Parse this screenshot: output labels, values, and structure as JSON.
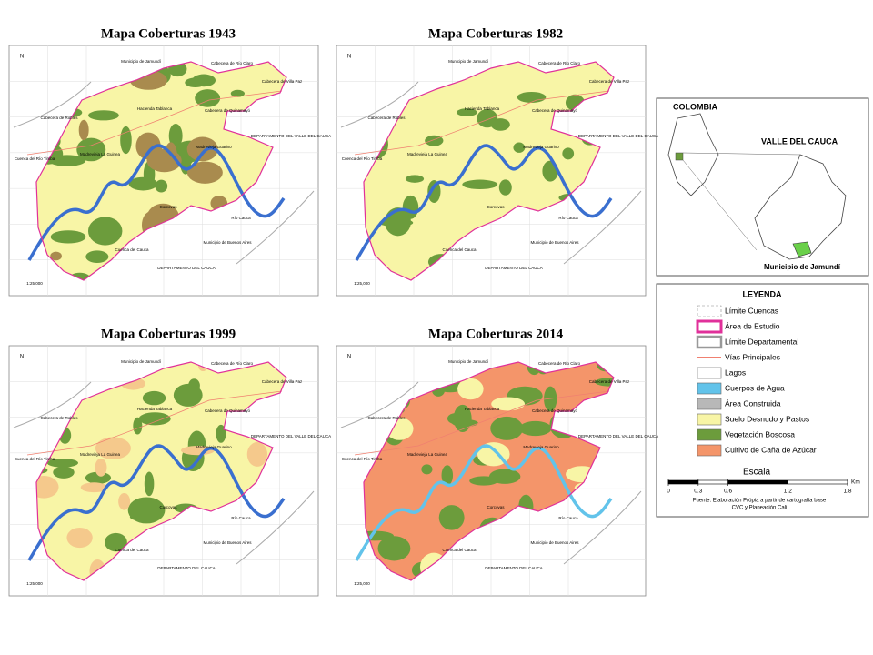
{
  "maps": [
    {
      "title": "Mapa Coberturas 1943",
      "labels": [
        "Municipio de Jamundí",
        "Cabecera de Río Claro",
        "Cabecera de Villa Paz",
        "Cabecera de Robles",
        "Hacienda Tablanca",
        "Cabecera de Quinamayó",
        "Cuenca del Río Timba",
        "Madrevieja La Guinea",
        "Madrevieja Guarino",
        "DEPARTAMENTO DEL VALLE DEL CAUCA",
        "Río Cauca",
        "Corcovas",
        "Cuenca del Cauca",
        "DEPARTAMENTO DEL CAUCA",
        "Municipio de Buenos Aires",
        "1:25,000"
      ]
    },
    {
      "title": "Mapa Coberturas 1982",
      "labels": [
        "Municipio de Jamundí",
        "Cabecera de Río Claro",
        "Cabecera de Villa Paz",
        "Cabecera de Robles",
        "Hacienda Tablanca",
        "Cabecera de Quinamayó",
        "Cuenca del Río Timba",
        "Madrevieja La Guinea",
        "Madrevieja Guarino",
        "DEPARTAMENTO DEL VALLE DEL CAUCA",
        "Río Cauca",
        "Corcovas",
        "Cuenca del Cauca",
        "DEPARTAMENTO DEL CAUCA",
        "Municipio de Buenos Aires",
        "1:25,000"
      ]
    },
    {
      "title": "Mapa Coberturas 1999",
      "labels": [
        "Municipio de Jamundí",
        "Cabecera de Río Claro",
        "Cabecera de Villa Paz",
        "Cabecera de Robles",
        "Hacienda Tablanca",
        "Cabecera de Quinamayó",
        "Cuenca del Río Timba",
        "Madrevieja La Guinea",
        "Madrevieja Guarino",
        "DEPARTAMENTO DEL VALLE DEL CAUCA",
        "Río Cauca",
        "Corcovas",
        "Cuenca del Cauca",
        "DEPARTAMENTO DEL CAUCA",
        "Municipio de Buenos Aires",
        "1:25,000"
      ]
    },
    {
      "title": "Mapa Coberturas  2014",
      "labels": [
        "Municipio de Jamundí",
        "Cabecera de Río Claro",
        "Cabecera de Villa Paz",
        "Cabecera de Robles",
        "Hacienda Tablanca",
        "Cabecera de Quinamayó",
        "Cuenca del Río Timba",
        "Madrevieja La Guinea",
        "Madrevieja Guarino",
        "DEPARTAMENTO DEL VALLE DEL CAUCA",
        "Río Cauca",
        "Corcovas",
        "Cuenca del Cauca",
        "DEPARTAMENTO DEL CAUCA",
        "Municipio de Buenos Aires",
        "1:25,000"
      ]
    }
  ],
  "inset": {
    "country": "COLOMBIA",
    "department": "VALLE DEL CAUCA",
    "municipality": "Municipio de Jamundí"
  },
  "legend": {
    "title": "LEYENDA",
    "items": [
      {
        "label": "Límite  Cuencas",
        "color": "#888888"
      },
      {
        "label": "Área de Estudio",
        "color": "#e0309a"
      },
      {
        "label": "Límite Departamental",
        "color": "#999999"
      },
      {
        "label": "Vías Principales",
        "color": "#f08070"
      },
      {
        "label": "Lagos",
        "color": "#ffffff"
      },
      {
        "label": "Cuerpos de Agua",
        "color": "#62c3ea"
      },
      {
        "label": "Área Construida",
        "color": "#b8b8b8"
      },
      {
        "label": "Suelo Desnudo y Pastos",
        "color": "#f8f5a6"
      },
      {
        "label": "Vegetación Boscosa",
        "color": "#6c9c3c"
      },
      {
        "label": "Cultivo de Caña de Azúcar",
        "color": "#f4956a"
      }
    ]
  },
  "scale": {
    "title": "Escala",
    "unit": "Km",
    "ticks": [
      0,
      0.3,
      0.6,
      1.2,
      1.8
    ]
  },
  "source": [
    "Fuente: Elaboración Própia a partir de cartografía base",
    "CVC y Planeación Cali"
  ]
}
